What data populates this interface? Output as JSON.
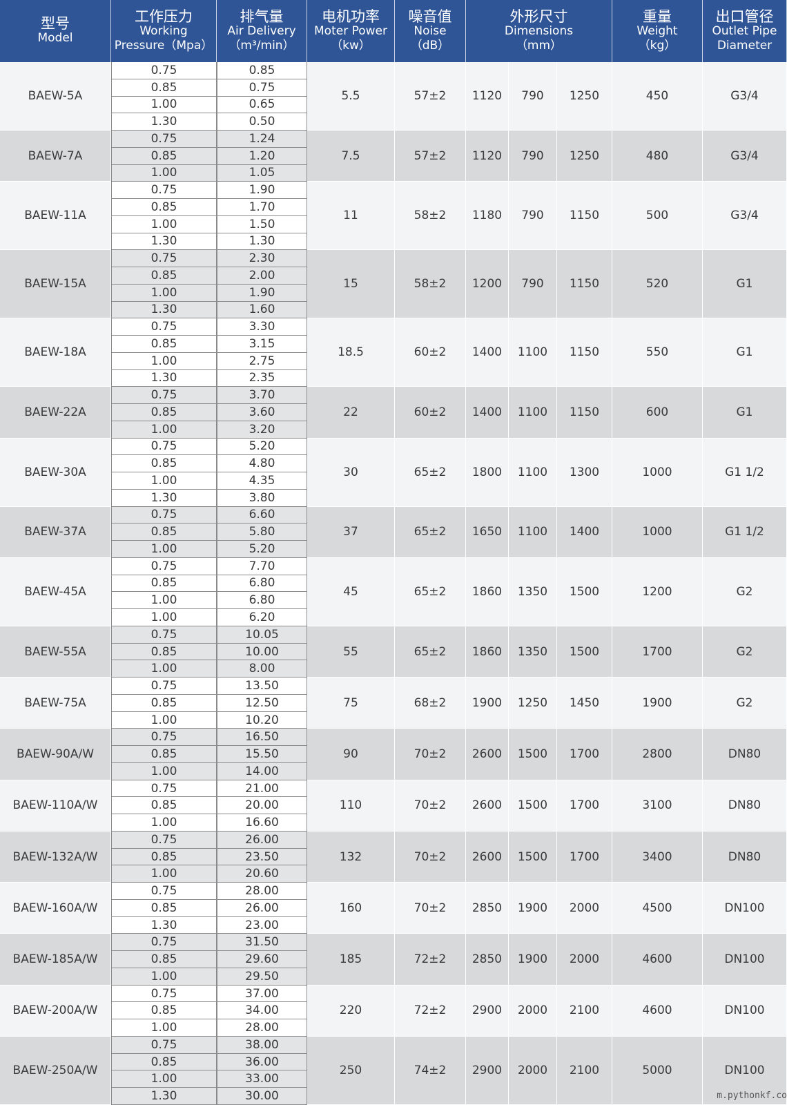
{
  "header": [
    {
      "cn": "型号",
      "en": [
        "Model"
      ]
    },
    {
      "cn": "工作压力",
      "en": [
        "Working",
        "Pressure（Mpa）"
      ]
    },
    {
      "cn": "排气量",
      "en": [
        "Air Delivery",
        "（m³/min）"
      ]
    },
    {
      "cn": "电机功率",
      "en": [
        "Moter Power",
        "（kw）"
      ]
    },
    {
      "cn": "噪音值",
      "en": [
        "Noise",
        "（dB）"
      ]
    },
    {
      "cn": "外形尺寸",
      "en": [
        "Dimensions",
        "（mm）"
      ]
    },
    {
      "cn": "重量",
      "en": [
        "Weight",
        "（kg）"
      ]
    },
    {
      "cn": "出口管径",
      "en": [
        "Outlet Pipe",
        "Diameter"
      ]
    }
  ],
  "rows": [
    {
      "model": "BAEW-5A",
      "pressure": [
        "0.75",
        "0.85",
        "1.00",
        "1.30"
      ],
      "delivery": [
        "0.85",
        "0.75",
        "0.65",
        "0.50"
      ],
      "power": "5.5",
      "noise": "57±2",
      "dimensions": [
        "1120",
        "790",
        "1250"
      ],
      "weight": "450",
      "outlet": "G3/4"
    },
    {
      "model": "BAEW-7A",
      "pressure": [
        "0.75",
        "0.85",
        "1.00"
      ],
      "delivery": [
        "1.24",
        "1.20",
        "1.05"
      ],
      "power": "7.5",
      "noise": "57±2",
      "dimensions": [
        "1120",
        "790",
        "1250"
      ],
      "weight": "480",
      "outlet": "G3/4"
    },
    {
      "model": "BAEW-11A",
      "pressure": [
        "0.75",
        "0.85",
        "1.00",
        "1.30"
      ],
      "delivery": [
        "1.90",
        "1.70",
        "1.50",
        "1.30"
      ],
      "power": "11",
      "noise": "58±2",
      "dimensions": [
        "1180",
        "790",
        "1150"
      ],
      "weight": "500",
      "outlet": "G3/4"
    },
    {
      "model": "BAEW-15A",
      "pressure": [
        "0.75",
        "0.85",
        "1.00",
        "1.30"
      ],
      "delivery": [
        "2.30",
        "2.00",
        "1.90",
        "1.60"
      ],
      "power": "15",
      "noise": "58±2",
      "dimensions": [
        "1200",
        "790",
        "1150"
      ],
      "weight": "520",
      "outlet": "G1"
    },
    {
      "model": "BAEW-18A",
      "pressure": [
        "0.75",
        "0.85",
        "1.00",
        "1.30"
      ],
      "delivery": [
        "3.30",
        "3.15",
        "2.75",
        "2.35"
      ],
      "power": "18.5",
      "noise": "60±2",
      "dimensions": [
        "1400",
        "1100",
        "1150"
      ],
      "weight": "550",
      "outlet": "G1"
    },
    {
      "model": "BAEW-22A",
      "pressure": [
        "0.75",
        "0.85",
        "1.00"
      ],
      "delivery": [
        "3.70",
        "3.60",
        "3.20"
      ],
      "power": "22",
      "noise": "60±2",
      "dimensions": [
        "1400",
        "1100",
        "1150"
      ],
      "weight": "600",
      "outlet": "G1"
    },
    {
      "model": "BAEW-30A",
      "pressure": [
        "0.75",
        "0.85",
        "1.00",
        "1.30"
      ],
      "delivery": [
        "5.20",
        "4.80",
        "4.35",
        "3.80"
      ],
      "power": "30",
      "noise": "65±2",
      "dimensions": [
        "1800",
        "1100",
        "1300"
      ],
      "weight": "1000",
      "outlet": "G1 1/2"
    },
    {
      "model": "BAEW-37A",
      "pressure": [
        "0.75",
        "0.85",
        "1.00"
      ],
      "delivery": [
        "6.60",
        "5.80",
        "5.20"
      ],
      "power": "37",
      "noise": "65±2",
      "dimensions": [
        "1650",
        "1100",
        "1400"
      ],
      "weight": "1000",
      "outlet": "G1 1/2"
    },
    {
      "model": "BAEW-45A",
      "pressure": [
        "0.75",
        "0.85",
        "1.00",
        "1.00"
      ],
      "delivery": [
        "7.70",
        "6.80",
        "6.80",
        "6.20"
      ],
      "power": "45",
      "noise": "65±2",
      "dimensions": [
        "1860",
        "1350",
        "1500"
      ],
      "weight": "1200",
      "outlet": "G2"
    },
    {
      "model": "BAEW-55A",
      "pressure": [
        "0.75",
        "0.85",
        "1.00"
      ],
      "delivery": [
        "10.05",
        "10.00",
        "8.00"
      ],
      "power": "55",
      "noise": "65±2",
      "dimensions": [
        "1860",
        "1350",
        "1500"
      ],
      "weight": "1700",
      "outlet": "G2"
    },
    {
      "model": "BAEW-75A",
      "pressure": [
        "0.75",
        "0.85",
        "1.00"
      ],
      "delivery": [
        "13.50",
        "12.50",
        "10.20"
      ],
      "power": "75",
      "noise": "68±2",
      "dimensions": [
        "1900",
        "1250",
        "1450"
      ],
      "weight": "1900",
      "outlet": "G2"
    },
    {
      "model": "BAEW-90A/W",
      "pressure": [
        "0.75",
        "0.85",
        "1.00"
      ],
      "delivery": [
        "16.50",
        "15.50",
        "14.00"
      ],
      "power": "90",
      "noise": "70±2",
      "dimensions": [
        "2600",
        "1500",
        "1700"
      ],
      "weight": "2800",
      "outlet": "DN80"
    },
    {
      "model": "BAEW-110A/W",
      "pressure": [
        "0.75",
        "0.85",
        "1.00"
      ],
      "delivery": [
        "21.00",
        "20.00",
        "16.60"
      ],
      "power": "110",
      "noise": "70±2",
      "dimensions": [
        "2600",
        "1500",
        "1700"
      ],
      "weight": "3100",
      "outlet": "DN80"
    },
    {
      "model": "BAEW-132A/W",
      "pressure": [
        "0.75",
        "0.85",
        "1.00"
      ],
      "delivery": [
        "26.00",
        "23.50",
        "20.60"
      ],
      "power": "132",
      "noise": "70±2",
      "dimensions": [
        "2600",
        "1500",
        "1700"
      ],
      "weight": "3400",
      "outlet": "DN80"
    },
    {
      "model": "BAEW-160A/W",
      "pressure": [
        "0.75",
        "0.85",
        "1.30"
      ],
      "delivery": [
        "28.00",
        "26.00",
        "23.00"
      ],
      "power": "160",
      "noise": "70±2",
      "dimensions": [
        "2850",
        "1900",
        "2000"
      ],
      "weight": "4500",
      "outlet": "DN100"
    },
    {
      "model": "BAEW-185A/W",
      "pressure": [
        "0.75",
        "0.85",
        "1.00"
      ],
      "delivery": [
        "31.50",
        "29.60",
        "29.50"
      ],
      "power": "185",
      "noise": "72±2",
      "dimensions": [
        "2850",
        "1900",
        "2000"
      ],
      "weight": "4600",
      "outlet": "DN100"
    },
    {
      "model": "BAEW-200A/W",
      "pressure": [
        "0.75",
        "0.85",
        "1.00"
      ],
      "delivery": [
        "37.00",
        "34.00",
        "28.00"
      ],
      "power": "220",
      "noise": "72±2",
      "dimensions": [
        "2900",
        "2000",
        "2100"
      ],
      "weight": "4600",
      "outlet": "DN100"
    },
    {
      "model": "BAEW-250A/W",
      "pressure": [
        "0.75",
        "0.85",
        "1.00",
        "1.30"
      ],
      "delivery": [
        "38.00",
        "36.00",
        "33.00",
        "30.00"
      ],
      "power": "250",
      "noise": "74±2",
      "dimensions": [
        "2900",
        "2000",
        "2100"
      ],
      "weight": "5000",
      "outlet": "DN100"
    }
  ],
  "watermark": "m.pythonkf.co"
}
